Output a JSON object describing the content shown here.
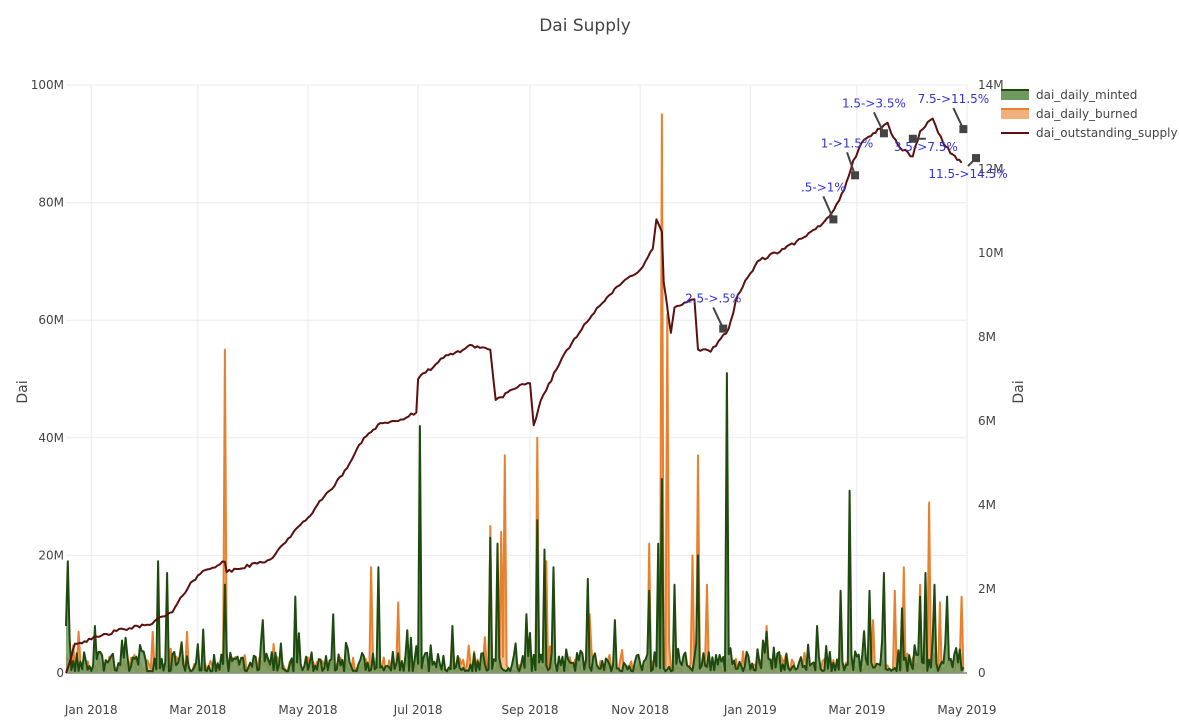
{
  "chart_data": {
    "type": "area",
    "title": "Dai Supply",
    "x_axis": {
      "range": [
        "2017-12-18",
        "2019-05-01"
      ],
      "ticks": [
        "2018-01-01",
        "2018-03-01",
        "2018-05-01",
        "2018-07-01",
        "2018-09-01",
        "2018-11-01",
        "2019-01-01",
        "2019-03-01",
        "2019-05-01"
      ],
      "tick_labels": [
        "Jan 2018",
        "Mar 2018",
        "May 2018",
        "Jul 2018",
        "Sep 2018",
        "Nov 2018",
        "Jan 2019",
        "Mar 2019",
        "May 2019"
      ]
    },
    "y_axis_left": {
      "label": "Dai",
      "range": [
        0,
        100000000
      ],
      "ticks": [
        0,
        20000000,
        40000000,
        60000000,
        80000000,
        100000000
      ],
      "tick_labels": [
        "0",
        "20M",
        "40M",
        "60M",
        "80M",
        "100M"
      ]
    },
    "y_axis_right": {
      "label": "Dai",
      "range": [
        0,
        14000000
      ],
      "ticks": [
        0,
        2000000,
        4000000,
        6000000,
        8000000,
        10000000,
        12000000,
        14000000
      ],
      "tick_labels": [
        "0",
        "2M",
        "4M",
        "6M",
        "8M",
        "10M",
        "12M",
        "14M"
      ]
    },
    "grid": true,
    "legend_position": "top-right",
    "series": [
      {
        "name": "dai_daily_minted",
        "axis": "left",
        "kind": "area",
        "line_color": "#1f4a0f",
        "fill_color": "#6f9a5f",
        "base_level": 2000000,
        "spikes": [
          [
            "2017-12-18",
            8000000
          ],
          [
            "2017-12-19",
            19000000
          ],
          [
            "2017-12-20",
            6000000
          ],
          [
            "2018-01-03",
            8000000
          ],
          [
            "2018-01-20",
            6000000
          ],
          [
            "2018-02-07",
            19000000
          ],
          [
            "2018-02-12",
            17000000
          ],
          [
            "2018-03-16",
            15000000
          ],
          [
            "2018-04-06",
            9000000
          ],
          [
            "2018-04-24",
            13000000
          ],
          [
            "2018-05-15",
            10000000
          ],
          [
            "2018-06-09",
            18000000
          ],
          [
            "2018-06-27",
            6000000
          ],
          [
            "2018-07-02",
            42000000
          ],
          [
            "2018-07-20",
            8000000
          ],
          [
            "2018-08-10",
            23000000
          ],
          [
            "2018-08-14",
            22000000
          ],
          [
            "2018-08-30",
            10000000
          ],
          [
            "2018-09-05",
            26000000
          ],
          [
            "2018-09-09",
            21000000
          ],
          [
            "2018-09-14",
            18000000
          ],
          [
            "2018-10-03",
            16000000
          ],
          [
            "2018-10-18",
            9000000
          ],
          [
            "2018-11-06",
            14000000
          ],
          [
            "2018-11-11",
            22000000
          ],
          [
            "2018-11-13",
            33000000
          ],
          [
            "2018-11-20",
            15000000
          ],
          [
            "2018-12-03",
            20000000
          ],
          [
            "2018-12-19",
            51000000
          ],
          [
            "2019-01-10",
            7000000
          ],
          [
            "2019-02-07",
            8000000
          ],
          [
            "2019-02-20",
            14000000
          ],
          [
            "2019-02-25",
            31000000
          ],
          [
            "2019-03-08",
            14000000
          ],
          [
            "2019-03-16",
            17000000
          ],
          [
            "2019-03-26",
            11000000
          ],
          [
            "2019-04-05",
            13000000
          ],
          [
            "2019-04-08",
            17000000
          ],
          [
            "2019-04-13",
            15000000
          ],
          [
            "2019-04-20",
            13000000
          ],
          [
            "2019-04-27",
            4000000
          ]
        ]
      },
      {
        "name": "dai_daily_burned",
        "axis": "left",
        "kind": "area",
        "line_color": "#e8802e",
        "fill_color": "#f2b07e",
        "base_level": 1500000,
        "spikes": [
          [
            "2017-12-25",
            7000000
          ],
          [
            "2018-02-04",
            7000000
          ],
          [
            "2018-02-23",
            7000000
          ],
          [
            "2018-03-16",
            55000000
          ],
          [
            "2018-06-05",
            18000000
          ],
          [
            "2018-06-20",
            12000000
          ],
          [
            "2018-07-20",
            6000000
          ],
          [
            "2018-08-10",
            25000000
          ],
          [
            "2018-08-16",
            24000000
          ],
          [
            "2018-08-18",
            37000000
          ],
          [
            "2018-09-05",
            40000000
          ],
          [
            "2018-09-10",
            19000000
          ],
          [
            "2018-10-04",
            10000000
          ],
          [
            "2018-11-06",
            22000000
          ],
          [
            "2018-11-13",
            95000000
          ],
          [
            "2018-11-16",
            61000000
          ],
          [
            "2018-11-30",
            20000000
          ],
          [
            "2018-12-03",
            37000000
          ],
          [
            "2018-12-08",
            15000000
          ],
          [
            "2019-01-10",
            8000000
          ],
          [
            "2019-02-20",
            6000000
          ],
          [
            "2019-03-10",
            9000000
          ],
          [
            "2019-03-22",
            14000000
          ],
          [
            "2019-03-27",
            18000000
          ],
          [
            "2019-04-05",
            15000000
          ],
          [
            "2019-04-10",
            29000000
          ],
          [
            "2019-04-16",
            12000000
          ],
          [
            "2019-04-28",
            13000000
          ]
        ]
      },
      {
        "name": "dai_outstanding_supply",
        "axis": "right",
        "kind": "line",
        "line_color": "#5c1010",
        "points": [
          [
            "2017-12-18",
            0
          ],
          [
            "2017-12-23",
            700000
          ],
          [
            "2018-01-01",
            800000
          ],
          [
            "2018-01-15",
            1000000
          ],
          [
            "2018-02-01",
            1150000
          ],
          [
            "2018-02-15",
            1450000
          ],
          [
            "2018-02-25",
            2150000
          ],
          [
            "2018-03-05",
            2450000
          ],
          [
            "2018-03-16",
            2650000
          ],
          [
            "2018-03-17",
            2400000
          ],
          [
            "2018-04-10",
            2700000
          ],
          [
            "2018-04-20",
            3200000
          ],
          [
            "2018-05-01",
            3700000
          ],
          [
            "2018-05-10",
            4200000
          ],
          [
            "2018-05-20",
            4700000
          ],
          [
            "2018-06-01",
            5600000
          ],
          [
            "2018-06-10",
            5950000
          ],
          [
            "2018-06-20",
            6000000
          ],
          [
            "2018-06-30",
            6200000
          ],
          [
            "2018-07-01",
            7000000
          ],
          [
            "2018-07-15",
            7500000
          ],
          [
            "2018-07-31",
            7800000
          ],
          [
            "2018-08-10",
            7700000
          ],
          [
            "2018-08-13",
            6500000
          ],
          [
            "2018-08-25",
            6800000
          ],
          [
            "2018-09-01",
            6900000
          ],
          [
            "2018-09-03",
            5900000
          ],
          [
            "2018-09-07",
            6500000
          ],
          [
            "2018-09-20",
            7600000
          ],
          [
            "2018-10-01",
            8300000
          ],
          [
            "2018-10-15",
            9000000
          ],
          [
            "2018-10-25",
            9400000
          ],
          [
            "2018-11-01",
            9600000
          ],
          [
            "2018-11-08",
            10100000
          ],
          [
            "2018-11-10",
            10800000
          ],
          [
            "2018-11-13",
            10500000
          ],
          [
            "2018-11-14",
            9300000
          ],
          [
            "2018-11-18",
            8100000
          ],
          [
            "2018-11-20",
            8700000
          ],
          [
            "2018-12-01",
            8900000
          ],
          [
            "2018-12-03",
            7700000
          ],
          [
            "2018-12-10",
            7650000
          ],
          [
            "2018-12-20",
            8200000
          ],
          [
            "2018-12-25",
            9000000
          ],
          [
            "2019-01-05",
            9800000
          ],
          [
            "2019-01-20",
            10100000
          ],
          [
            "2019-02-01",
            10400000
          ],
          [
            "2019-02-10",
            10700000
          ],
          [
            "2019-02-15",
            10950000
          ],
          [
            "2019-02-22",
            11500000
          ],
          [
            "2019-02-27",
            12200000
          ],
          [
            "2019-03-05",
            12700000
          ],
          [
            "2019-03-10",
            12850000
          ],
          [
            "2019-03-18",
            13100000
          ],
          [
            "2019-03-20",
            12850000
          ],
          [
            "2019-03-25",
            12500000
          ],
          [
            "2019-04-01",
            12300000
          ],
          [
            "2019-04-05",
            12900000
          ],
          [
            "2019-04-12",
            13200000
          ],
          [
            "2019-04-18",
            12600000
          ],
          [
            "2019-04-23",
            12350000
          ],
          [
            "2019-04-28",
            12150000
          ]
        ]
      }
    ],
    "annotations": [
      {
        "label": "2.5->.5%",
        "x": "2018-12-17",
        "y": 8200000
      },
      {
        "label": ".5->1%",
        "x": "2019-02-16",
        "y": 10800000
      },
      {
        "label": "1->1.5%",
        "x": "2019-02-28",
        "y": 11850000
      },
      {
        "label": "1.5->3.5%",
        "x": "2019-03-16",
        "y": 12850000
      },
      {
        "label": "3.5->7.5%",
        "x": "2019-04-01",
        "y": 12720000
      },
      {
        "label": "7.5->11.5%",
        "x": "2019-04-29",
        "y": 12950000
      },
      {
        "label": "11.5->14.5%",
        "x": "2019-05-06",
        "y": 12260000
      }
    ]
  }
}
